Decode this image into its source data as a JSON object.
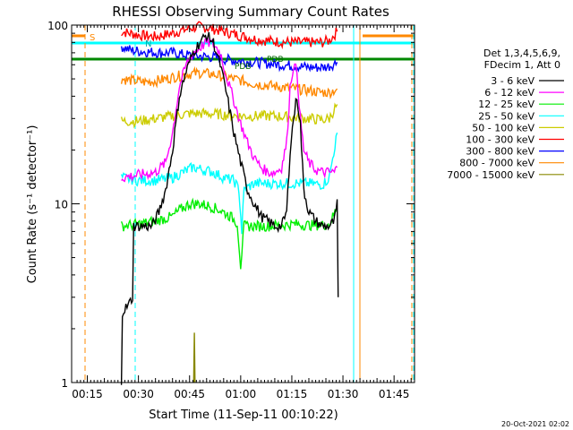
{
  "chart_data": {
    "type": "line",
    "title": "RHESSI Observing Summary Count Rates",
    "xlabel": "Start Time (11-Sep-11 00:10:22)",
    "ylabel": "Count Rate (s⁻¹ detector⁻¹)",
    "x_ticks": [
      "00:15",
      "00:30",
      "00:45",
      "01:00",
      "01:15",
      "01:30",
      "01:45"
    ],
    "x_tick_minutes": [
      15,
      30,
      45,
      60,
      75,
      90,
      105
    ],
    "xlim_minutes": [
      10.4,
      111.0
    ],
    "y_scale": "log",
    "ylim": [
      1,
      100
    ],
    "y_ticks": [
      1,
      10,
      100
    ],
    "legend_title": [
      "Det 1,3,4,5,6,9,",
      "FDecim 1, Att 0"
    ],
    "legend_position": "right",
    "colors": {
      "3-6": "#000000",
      "6-12": "#ff00ff",
      "12-25": "#00ee00",
      "25-50": "#00ffff",
      "50-100": "#cccc00",
      "100-300": "#ff0000",
      "300-800": "#0000ff",
      "800-7000": "#ff8800",
      "7000-15000": "#888800",
      "flag_cyan": "#00ffff",
      "flag_orange": "#ff8800",
      "flag_green": "#008800"
    },
    "series": [
      {
        "name": "3 - 6 keV",
        "color": "#000000",
        "points": [
          [
            25,
            1
          ],
          [
            25.3,
            2.5
          ],
          [
            27,
            2.7
          ],
          [
            28.3,
            3
          ],
          [
            28.6,
            7.5
          ],
          [
            34,
            7.5
          ],
          [
            36,
            9
          ],
          [
            38,
            12
          ],
          [
            40,
            20
          ],
          [
            42,
            40
          ],
          [
            44,
            55
          ],
          [
            46,
            70
          ],
          [
            48,
            80
          ],
          [
            50,
            88
          ],
          [
            52,
            80
          ],
          [
            54,
            60
          ],
          [
            56,
            40
          ],
          [
            58,
            25
          ],
          [
            60,
            17
          ],
          [
            62,
            12
          ],
          [
            64,
            10
          ],
          [
            66,
            8.5
          ],
          [
            68,
            8
          ],
          [
            70,
            7.5
          ],
          [
            72,
            7.5
          ],
          [
            73.5,
            9
          ],
          [
            74.5,
            20
          ],
          [
            75.5,
            30
          ],
          [
            76.5,
            40
          ],
          [
            77.5,
            28
          ],
          [
            78.5,
            12
          ],
          [
            80,
            9
          ],
          [
            82,
            8
          ],
          [
            84,
            7.5
          ],
          [
            86,
            7.5
          ],
          [
            87.5,
            8
          ],
          [
            88.3,
            10
          ],
          [
            88.6,
            3
          ]
        ]
      },
      {
        "name": "6 - 12 keV",
        "color": "#ff00ff",
        "points": [
          [
            25,
            14
          ],
          [
            30,
            14.5
          ],
          [
            35,
            15
          ],
          [
            38,
            17
          ],
          [
            40,
            25
          ],
          [
            42,
            45
          ],
          [
            44,
            60
          ],
          [
            46,
            70
          ],
          [
            48,
            75
          ],
          [
            50,
            80
          ],
          [
            52,
            78
          ],
          [
            54,
            70
          ],
          [
            56,
            50
          ],
          [
            58,
            38
          ],
          [
            60,
            28
          ],
          [
            62,
            22
          ],
          [
            64,
            18
          ],
          [
            66,
            16
          ],
          [
            68,
            15
          ],
          [
            70,
            15
          ],
          [
            72,
            16
          ],
          [
            73.5,
            22
          ],
          [
            74.5,
            45
          ],
          [
            75.5,
            60
          ],
          [
            76.5,
            55
          ],
          [
            77.5,
            30
          ],
          [
            78.5,
            20
          ],
          [
            80,
            17
          ],
          [
            82,
            15.5
          ],
          [
            84,
            15
          ],
          [
            86,
            15
          ],
          [
            87.5,
            15
          ],
          [
            88.3,
            16
          ]
        ]
      },
      {
        "name": "12 - 25 keV",
        "color": "#00ee00",
        "points": [
          [
            25,
            7.5
          ],
          [
            30,
            7.7
          ],
          [
            35,
            8
          ],
          [
            40,
            8.5
          ],
          [
            42,
            9.2
          ],
          [
            45,
            10
          ],
          [
            48,
            10
          ],
          [
            51,
            9.7
          ],
          [
            54,
            9.2
          ],
          [
            57,
            8.5
          ],
          [
            59,
            7.8
          ],
          [
            60,
            4.5
          ],
          [
            61,
            7.5
          ],
          [
            64,
            7.5
          ],
          [
            68,
            7.5
          ],
          [
            72,
            7.6
          ],
          [
            76,
            7.7
          ],
          [
            80,
            7.6
          ],
          [
            84,
            7.6
          ],
          [
            86,
            7.7
          ],
          [
            88.3,
            9.5
          ]
        ]
      },
      {
        "name": "25 - 50 keV",
        "color": "#00ffff",
        "points": [
          [
            25,
            14
          ],
          [
            30,
            13.5
          ],
          [
            35,
            13.5
          ],
          [
            40,
            14
          ],
          [
            43,
            15
          ],
          [
            46,
            16
          ],
          [
            49,
            15.5
          ],
          [
            52,
            15
          ],
          [
            55,
            14
          ],
          [
            58,
            13.5
          ],
          [
            59.5,
            12
          ],
          [
            60.3,
            7
          ],
          [
            61,
            12
          ],
          [
            64,
            13
          ],
          [
            68,
            13
          ],
          [
            72,
            13
          ],
          [
            76,
            13
          ],
          [
            80,
            13
          ],
          [
            84,
            12.8
          ],
          [
            86,
            14
          ],
          [
            88.3,
            25
          ]
        ]
      },
      {
        "name": "50 - 100 keV",
        "color": "#cccc00",
        "points": [
          [
            25,
            29
          ],
          [
            30,
            29
          ],
          [
            35,
            30
          ],
          [
            40,
            31
          ],
          [
            45,
            32
          ],
          [
            50,
            32
          ],
          [
            55,
            31.5
          ],
          [
            60,
            31
          ],
          [
            65,
            31
          ],
          [
            70,
            31
          ],
          [
            75,
            30.5
          ],
          [
            80,
            30
          ],
          [
            84,
            29.5
          ],
          [
            86,
            30
          ],
          [
            88.3,
            36
          ]
        ]
      },
      {
        "name": "100 - 300 keV",
        "color": "#ff0000",
        "points": [
          [
            25,
            92
          ],
          [
            30,
            88
          ],
          [
            35,
            86
          ],
          [
            40,
            90
          ],
          [
            45,
            96
          ],
          [
            48,
            98
          ],
          [
            51,
            96
          ],
          [
            55,
            92
          ],
          [
            60,
            87
          ],
          [
            65,
            83
          ],
          [
            70,
            81
          ],
          [
            75,
            80
          ],
          [
            80,
            80
          ],
          [
            84,
            80
          ],
          [
            86,
            82
          ],
          [
            88.3,
            92
          ]
        ]
      },
      {
        "name": "300 - 800 keV",
        "color": "#0000ff",
        "points": [
          [
            25,
            76
          ],
          [
            28,
            72
          ],
          [
            32,
            71
          ],
          [
            36,
            70
          ],
          [
            40,
            70
          ],
          [
            44,
            68
          ],
          [
            48,
            67
          ],
          [
            52,
            66
          ],
          [
            56,
            64
          ],
          [
            60,
            63
          ],
          [
            64,
            62
          ],
          [
            68,
            61
          ],
          [
            72,
            60
          ],
          [
            76,
            59
          ],
          [
            80,
            58
          ],
          [
            84,
            58
          ],
          [
            86,
            59
          ],
          [
            88.3,
            62
          ]
        ]
      },
      {
        "name": "800 - 7000 keV",
        "color": "#ff8800",
        "points": [
          [
            25,
            50
          ],
          [
            28,
            49
          ],
          [
            32,
            48
          ],
          [
            36,
            49
          ],
          [
            40,
            51
          ],
          [
            44,
            53
          ],
          [
            48,
            54
          ],
          [
            52,
            53
          ],
          [
            56,
            51
          ],
          [
            60,
            49
          ],
          [
            64,
            47
          ],
          [
            68,
            46
          ],
          [
            72,
            45
          ],
          [
            76,
            44
          ],
          [
            80,
            43
          ],
          [
            84,
            42
          ],
          [
            86,
            42
          ],
          [
            88.3,
            44
          ]
        ]
      },
      {
        "name": "7000 - 15000 keV",
        "color": "#888800",
        "points": [
          [
            46.2,
            1
          ],
          [
            46.4,
            1.9
          ],
          [
            46.6,
            1
          ]
        ]
      }
    ],
    "flag_labels": [
      "S",
      "N",
      "PDB",
      "PDB"
    ],
    "footer_timestamp": "20-Oct-2021 02:02"
  }
}
